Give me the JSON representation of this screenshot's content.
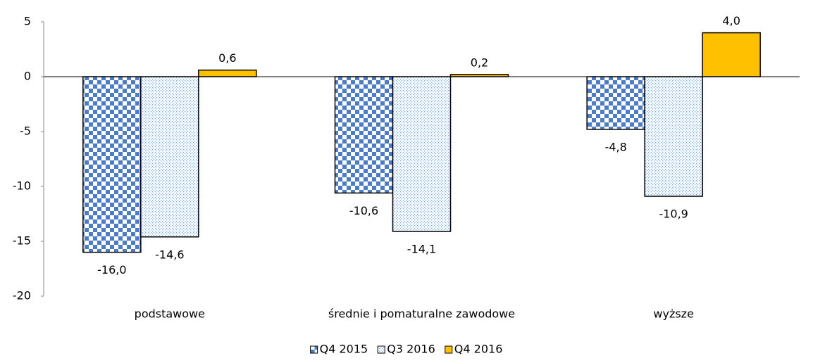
{
  "chart_data": {
    "type": "bar",
    "categories": [
      "podstawowe",
      "średnie i pomaturalne zawodowe",
      "wyższe"
    ],
    "series": [
      {
        "name": "Q4 2015",
        "color": "#4a7cc9",
        "pattern": "checker",
        "values": [
          -16.0,
          -10.6,
          -4.8
        ],
        "value_labels": [
          "-16,0",
          "-10,6",
          "-4,8"
        ]
      },
      {
        "name": "Q3 2016",
        "color": "#7fa7dc",
        "pattern": "dots",
        "values": [
          -14.6,
          -14.1,
          -10.9
        ],
        "value_labels": [
          "-14,6",
          "-14,1",
          "-10,9"
        ]
      },
      {
        "name": "Q4 2016",
        "color": "#ffc000",
        "pattern": "solid",
        "values": [
          0.6,
          0.2,
          4.0
        ],
        "value_labels": [
          "0,6",
          "0,2",
          "4,0"
        ]
      }
    ],
    "ylim": [
      -20,
      5
    ],
    "yticks": [
      -20,
      -15,
      -10,
      -5,
      0,
      5
    ],
    "grid": false,
    "legend": "bottom"
  }
}
